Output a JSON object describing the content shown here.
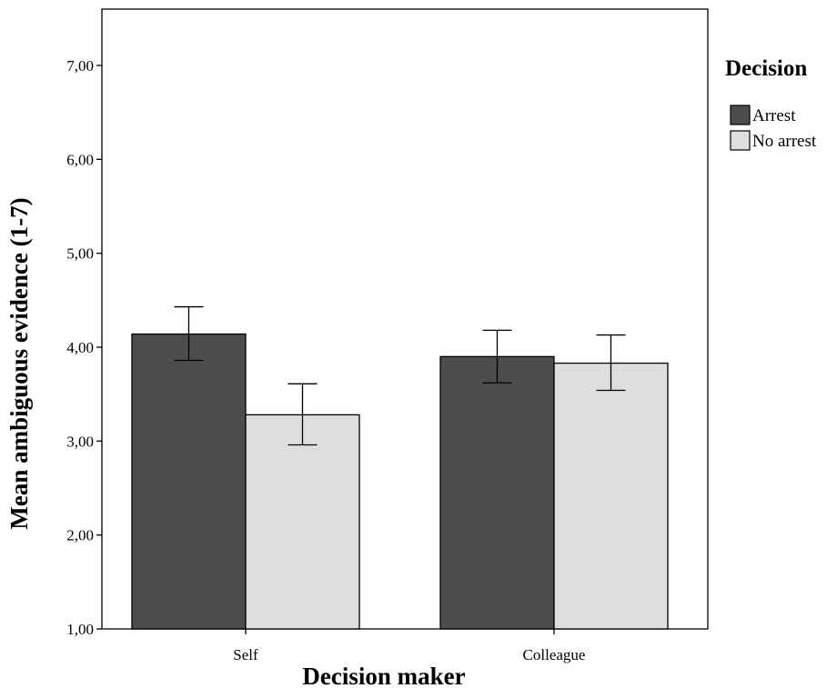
{
  "chart_data": {
    "type": "bar",
    "xlabel": "Decision maker",
    "ylabel": "Mean ambiguous evidence  (1-7)",
    "ylim": [
      1,
      7.6
    ],
    "yticks": [
      {
        "value": 1,
        "label": "1,00"
      },
      {
        "value": 2,
        "label": "2,00"
      },
      {
        "value": 3,
        "label": "3,00"
      },
      {
        "value": 4,
        "label": "4,00"
      },
      {
        "value": 5,
        "label": "5,00"
      },
      {
        "value": 6,
        "label": "6,00"
      },
      {
        "value": 7,
        "label": "7,00"
      }
    ],
    "categories": [
      "Self",
      "Colleague"
    ],
    "legend_title": "Decision",
    "legend_position": "right",
    "grid": false,
    "series": [
      {
        "name": "Arrest",
        "color": "#4d4d4d",
        "values": [
          4.14,
          3.9
        ],
        "err_low": [
          3.86,
          3.62
        ],
        "err_high": [
          4.43,
          4.18
        ]
      },
      {
        "name": "No arrest",
        "color": "#dedede",
        "values": [
          3.28,
          3.83
        ],
        "err_low": [
          2.96,
          3.54
        ],
        "err_high": [
          3.61,
          4.13
        ]
      }
    ]
  }
}
